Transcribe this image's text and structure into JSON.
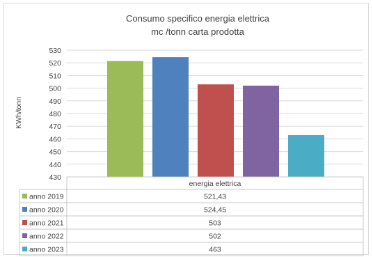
{
  "chart_data": {
    "type": "bar",
    "title": "Consumo specifico energia elettrica",
    "subtitle": "mc /tonn carta prodotta",
    "ylabel": "KWh/tonn",
    "category": "energia elettrica",
    "ylim": [
      430,
      530
    ],
    "yticks": [
      430,
      440,
      450,
      460,
      470,
      480,
      490,
      500,
      510,
      520,
      530
    ],
    "grid": true,
    "series": [
      {
        "name": "anno 2019",
        "value": 521.43,
        "label": "521,43",
        "color": "#9bbb59"
      },
      {
        "name": "anno 2020",
        "value": 524.45,
        "label": "524,45",
        "color": "#4f81bd"
      },
      {
        "name": "anno 2021",
        "value": 503,
        "label": "503",
        "color": "#c0504d"
      },
      {
        "name": "anno 2022",
        "value": 502,
        "label": "502",
        "color": "#8064a2"
      },
      {
        "name": "anno 2023",
        "value": 463,
        "label": "463",
        "color": "#4bacc6"
      }
    ]
  }
}
